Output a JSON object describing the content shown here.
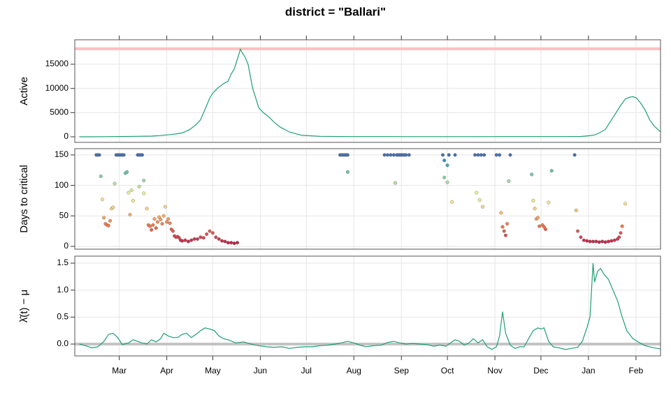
{
  "title": "district = \"Ballari\"",
  "x_axis": {
    "xlim": [
      0,
      382
    ],
    "xticks": [
      {
        "value": 29,
        "label": "Mar"
      },
      {
        "value": 60,
        "label": "Apr"
      },
      {
        "value": 90,
        "label": "May"
      },
      {
        "value": 121,
        "label": "Jun"
      },
      {
        "value": 151,
        "label": "Jul"
      },
      {
        "value": 182,
        "label": "Aug"
      },
      {
        "value": 213,
        "label": "Sep"
      },
      {
        "value": 243,
        "label": "Oct"
      },
      {
        "value": 274,
        "label": "Nov"
      },
      {
        "value": 304,
        "label": "Dec"
      },
      {
        "value": 335,
        "label": "Jan"
      },
      {
        "value": 366,
        "label": "Feb"
      }
    ]
  },
  "chart_data": [
    {
      "type": "line",
      "ylabel": "Active",
      "color": "#1f9e73",
      "grid": true,
      "ylim": [
        -1150,
        20050
      ],
      "yticks": [
        0,
        5000,
        10000,
        15000
      ],
      "hline": {
        "value": 18200,
        "color": "#ffc0c0"
      },
      "x": [
        3,
        10,
        20,
        30,
        40,
        50,
        55,
        60,
        65,
        70,
        75,
        79,
        82,
        84,
        86,
        88,
        90,
        93,
        95,
        97,
        100,
        102,
        104,
        106,
        107,
        108,
        109,
        111,
        113,
        116,
        118,
        120,
        123,
        127,
        130,
        134,
        140,
        148,
        160,
        180,
        200,
        220,
        240,
        260,
        280,
        300,
        320,
        330,
        335,
        339,
        342,
        346,
        349,
        353,
        356,
        359,
        362,
        364,
        366,
        369,
        372,
        375,
        378,
        382
      ],
      "values": [
        0,
        10,
        30,
        60,
        100,
        150,
        250,
        400,
        550,
        800,
        1500,
        2500,
        3500,
        5000,
        6500,
        8000,
        9000,
        10000,
        10500,
        11000,
        11500,
        13000,
        14000,
        16000,
        17000,
        18100,
        17500,
        16500,
        15000,
        10000,
        8000,
        6000,
        5000,
        4000,
        3000,
        2000,
        1000,
        300,
        100,
        50,
        40,
        30,
        30,
        30,
        40,
        40,
        50,
        80,
        200,
        400,
        800,
        1500,
        3000,
        5000,
        6500,
        7800,
        8200,
        8300,
        8100,
        7000,
        5500,
        3500,
        2200,
        1000
      ]
    },
    {
      "type": "scatter",
      "ylabel": "Days to critical",
      "grid": true,
      "ylim": [
        -4.6,
        160.3
      ],
      "yticks": [
        0,
        50,
        100,
        150
      ],
      "color_scale": [
        "#9e0142",
        "#d53e4f",
        "#f46d43",
        "#fdae61",
        "#fee08b",
        "#e6f598",
        "#abdda4",
        "#66c2a5",
        "#3288bd",
        "#5e4fa2"
      ],
      "x": [
        14,
        15,
        16,
        17,
        18,
        19,
        20,
        21,
        22,
        23,
        24,
        25,
        26,
        27,
        28,
        29,
        30,
        31,
        32,
        33,
        34,
        35,
        36,
        37,
        38,
        41,
        42,
        43,
        44,
        42,
        45,
        45,
        47,
        48,
        49,
        50,
        51,
        52,
        53,
        54,
        55,
        56,
        57,
        58,
        59,
        60,
        61,
        62,
        63,
        64,
        65,
        66,
        67,
        68,
        69,
        70,
        72,
        74,
        76,
        78,
        80,
        82,
        84,
        86,
        88,
        90,
        92,
        94,
        96,
        98,
        100,
        102,
        104,
        106,
        173,
        174,
        175,
        176,
        177,
        178,
        178,
        202,
        204,
        206,
        208,
        209,
        210,
        211,
        212,
        213,
        214,
        215,
        216,
        218,
        240,
        241,
        241,
        243,
        243,
        244,
        246,
        248,
        261,
        262,
        263,
        264,
        265,
        266,
        267,
        275,
        277,
        278,
        279,
        280,
        281,
        282,
        283,
        284,
        298,
        299,
        300,
        301,
        302,
        303,
        305,
        306,
        307,
        309,
        311,
        326,
        327,
        328,
        330,
        332,
        334,
        336,
        338,
        340,
        342,
        344,
        346,
        348,
        350,
        352,
        354,
        355,
        356,
        357,
        359
      ],
      "values": [
        150,
        150,
        150,
        115,
        77,
        47,
        37,
        35,
        34,
        42,
        62,
        64,
        103,
        150,
        150,
        150,
        150,
        150,
        150,
        120,
        122,
        88,
        52,
        92,
        75,
        150,
        150,
        150,
        150,
        98,
        108,
        87,
        62,
        35,
        33,
        27,
        35,
        45,
        30,
        40,
        48,
        44,
        37,
        50,
        65,
        40,
        45,
        38,
        28,
        25,
        17,
        15,
        16,
        14,
        10,
        9,
        10,
        8,
        10,
        12,
        12,
        15,
        14,
        20,
        25,
        22,
        15,
        12,
        9,
        8,
        6,
        6,
        5,
        6,
        150,
        150,
        150,
        150,
        150,
        150,
        122,
        150,
        150,
        150,
        150,
        104,
        150,
        150,
        150,
        150,
        150,
        150,
        150,
        150,
        150,
        141,
        113,
        133,
        105,
        150,
        73,
        150,
        150,
        88,
        150,
        76,
        150,
        65,
        150,
        150,
        150,
        55,
        32,
        25,
        18,
        37,
        107,
        150,
        118,
        75,
        62,
        45,
        47,
        33,
        35,
        32,
        28,
        72,
        124,
        150,
        59,
        25,
        15,
        10,
        9,
        8,
        8,
        8,
        7,
        8,
        7,
        8,
        9,
        10,
        12,
        15,
        22,
        33,
        70
      ]
    },
    {
      "type": "line",
      "ylabel": "λ̂(t) − μ",
      "color": "#1f9e73",
      "grid": true,
      "ylim": [
        -0.22,
        1.63
      ],
      "yticks": [
        {
          "value": 0,
          "label": "0.0"
        },
        {
          "value": 0.5,
          "label": "0.5"
        },
        {
          "value": 1,
          "label": "1.0"
        },
        {
          "value": 1.5,
          "label": "1.5"
        }
      ],
      "hline": {
        "value": 0,
        "color": "#c4c4c4"
      },
      "x": [
        3,
        7,
        11,
        15,
        19,
        22,
        25,
        28,
        31,
        35,
        38,
        41,
        44,
        47,
        50,
        53,
        56,
        58,
        61,
        64,
        67,
        70,
        73,
        76,
        79,
        82,
        85,
        88,
        91,
        94,
        97,
        100,
        105,
        110,
        115,
        120,
        125,
        130,
        135,
        140,
        145,
        150,
        155,
        160,
        165,
        170,
        175,
        178,
        182,
        186,
        190,
        195,
        200,
        204,
        208,
        212,
        216,
        220,
        225,
        230,
        234,
        238,
        242,
        245,
        248,
        251,
        254,
        257,
        260,
        263,
        266,
        269,
        272,
        275,
        277,
        279,
        281,
        284,
        287,
        290,
        293,
        296,
        299,
        302,
        304,
        306,
        309,
        312,
        316,
        320,
        324,
        328,
        331,
        334,
        336,
        338,
        339,
        341,
        343,
        345,
        348,
        351,
        354,
        357,
        360,
        364,
        368,
        372,
        376,
        380,
        382
      ],
      "values": [
        0.0,
        -0.03,
        -0.07,
        -0.05,
        0.05,
        0.18,
        0.2,
        0.12,
        -0.01,
        0.02,
        0.08,
        0.05,
        0.02,
        0.0,
        0.08,
        0.04,
        0.1,
        0.2,
        0.15,
        0.12,
        0.12,
        0.18,
        0.2,
        0.12,
        0.18,
        0.25,
        0.3,
        0.28,
        0.25,
        0.15,
        0.1,
        0.08,
        0.02,
        0.04,
        0.0,
        -0.03,
        -0.05,
        -0.06,
        -0.05,
        -0.08,
        -0.06,
        -0.05,
        -0.05,
        -0.03,
        -0.02,
        0.0,
        0.03,
        0.05,
        0.02,
        -0.02,
        -0.05,
        -0.03,
        -0.02,
        0.03,
        0.05,
        0.02,
        0.0,
        0.01,
        0.0,
        -0.01,
        -0.04,
        -0.02,
        -0.04,
        0.02,
        0.08,
        0.05,
        -0.02,
        0.02,
        0.1,
        0.02,
        0.08,
        -0.05,
        -0.1,
        -0.05,
        0.15,
        0.6,
        0.2,
        -0.02,
        -0.08,
        -0.05,
        -0.05,
        0.1,
        0.25,
        0.3,
        0.28,
        0.3,
        0.05,
        -0.05,
        -0.07,
        -0.1,
        -0.08,
        -0.06,
        0.05,
        0.3,
        0.5,
        1.5,
        1.15,
        1.35,
        1.4,
        1.3,
        1.2,
        1.0,
        0.8,
        0.5,
        0.25,
        0.1,
        0.03,
        -0.03,
        -0.06,
        -0.08,
        -0.09
      ]
    }
  ]
}
